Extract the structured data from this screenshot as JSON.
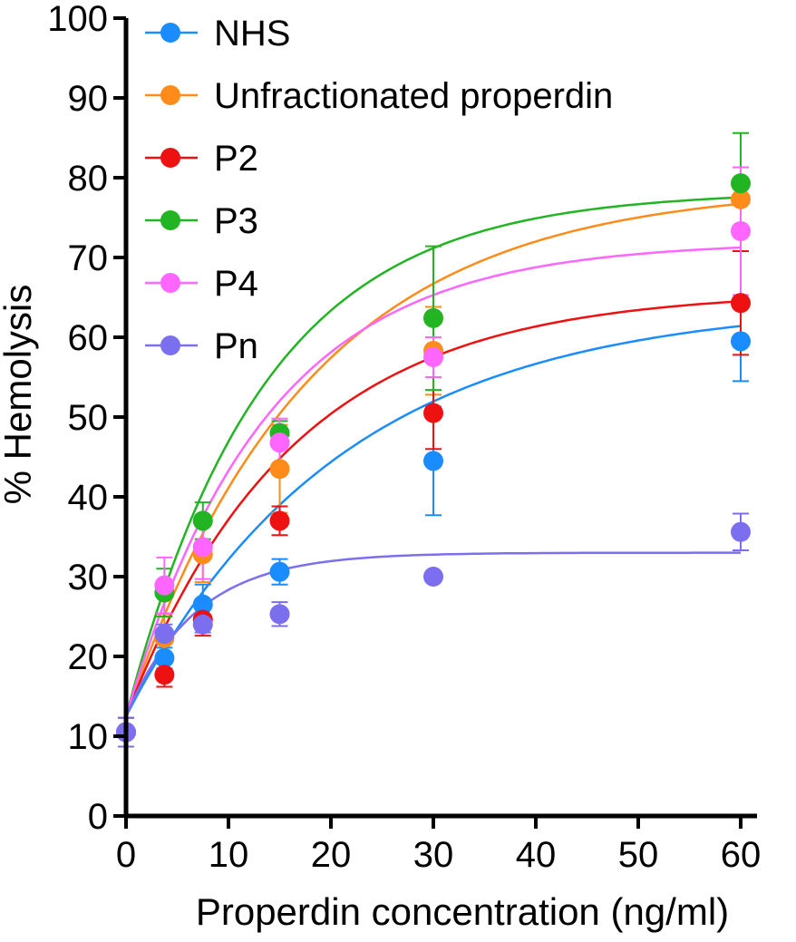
{
  "chart_data": {
    "type": "scatter",
    "title": "",
    "xlabel": "Properdin concentration (ng/ml)",
    "ylabel": "% Hemolysis",
    "xlim": [
      0,
      62
    ],
    "ylim": [
      0,
      100
    ],
    "x_ticks": [
      0,
      10,
      20,
      30,
      40,
      50,
      60
    ],
    "y_ticks": [
      0,
      10,
      20,
      30,
      40,
      50,
      60,
      70,
      80,
      90,
      100
    ],
    "x": [
      0,
      3.75,
      7.5,
      15,
      30,
      60
    ],
    "legend_position": "top-left",
    "series": [
      {
        "name": "NHS",
        "color": "#1a8cff",
        "values": [
          10.5,
          19.8,
          26.5,
          30.6,
          44.5,
          59.5
        ],
        "errors": [
          1.8,
          1.3,
          2.5,
          1.6,
          6.8,
          5.0
        ],
        "fit_plateau": 64.4,
        "fit_k": 0.0476
      },
      {
        "name": "Unfractionated properdin",
        "color": "#ff8c1a",
        "values": [
          10.5,
          22.3,
          32.8,
          43.5,
          58.3,
          77.3
        ],
        "errors": [
          1.8,
          3.0,
          3.5,
          5.5,
          5.5,
          4.0
        ],
        "fit_plateau": 79.0,
        "fit_k": 0.0563
      },
      {
        "name": "P2",
        "color": "#ee1111",
        "values": [
          10.5,
          17.7,
          24.6,
          37.0,
          50.5,
          64.3
        ],
        "errors": [
          1.8,
          1.5,
          2.0,
          1.8,
          4.5,
          6.5
        ],
        "fit_plateau": 65.8,
        "fit_k": 0.0621
      },
      {
        "name": "P3",
        "color": "#22b422",
        "values": [
          10.5,
          28.0,
          37.0,
          48.0,
          62.4,
          79.3
        ],
        "errors": [
          1.8,
          3.0,
          2.3,
          1.5,
          9.0,
          6.3
        ],
        "fit_plateau": 78.3,
        "fit_k": 0.0741
      },
      {
        "name": "P4",
        "color": "#ff66ff",
        "values": [
          10.5,
          28.9,
          33.7,
          46.8,
          57.5,
          73.3
        ],
        "errors": [
          1.8,
          3.5,
          4.0,
          3.0,
          2.5,
          8.0
        ],
        "fit_plateau": 72.0,
        "fit_k": 0.0728
      },
      {
        "name": "Pn",
        "color": "#7b6ff0",
        "values": [
          10.5,
          22.8,
          24.0,
          25.3,
          30.0,
          35.6
        ],
        "errors": [
          1.8,
          1.2,
          1.0,
          1.5,
          0.6,
          2.3
        ],
        "fit_plateau": 33.0,
        "fit_k": 0.1483
      }
    ]
  }
}
